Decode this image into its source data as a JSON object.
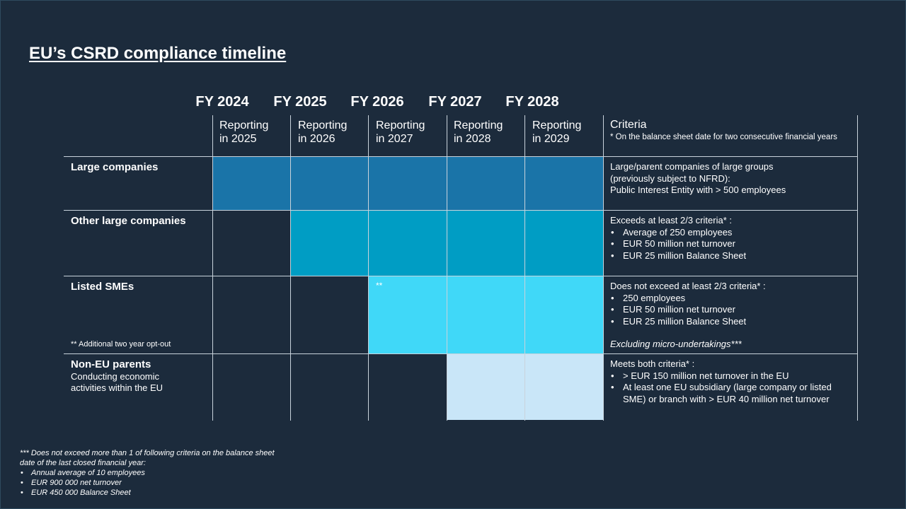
{
  "title": "EU’s CSRD compliance timeline",
  "fiscal_years": [
    "FY 2024",
    "FY 2025",
    "FY 2026",
    "FY 2027",
    "FY 2028"
  ],
  "reporting_years": [
    [
      "Reporting",
      "in 2025"
    ],
    [
      "Reporting",
      "in 2026"
    ],
    [
      "Reporting",
      "in 2027"
    ],
    [
      "Reporting",
      "in 2028"
    ],
    [
      "Reporting",
      "in 2029"
    ]
  ],
  "criteria_header": {
    "title": "Criteria",
    "note": "* On the balance sheet date for two consecutive financial years"
  },
  "colors": {
    "background": "#1c2b3c",
    "large": "#1a74a8",
    "other_large": "#009dc4",
    "listed_sme": "#40d8f8",
    "non_eu": "#c9e6f8"
  },
  "rows": [
    {
      "label": "Large companies",
      "criteria_lines": [
        "Large/parent companies of large groups",
        "(previously subject to NFRD):",
        "Public Interest Entity with > 500 employees"
      ]
    },
    {
      "label": "Other large companies",
      "criteria_intro": "Exceeds at least 2/3 criteria* :",
      "criteria_bullets": [
        "Average of 250 employees",
        "EUR 50 million net turnover",
        "EUR 25 million Balance Sheet"
      ]
    },
    {
      "label": "Listed SMEs",
      "note": "** Additional two year opt-out",
      "cell_marker": "**",
      "criteria_intro": "Does not exceed at least 2/3 criteria* :",
      "criteria_bullets": [
        "250 employees",
        "EUR 50 million net turnover",
        "EUR 25 million Balance Sheet"
      ],
      "criteria_extra": "Excluding micro-undertakings***"
    },
    {
      "label": "Non-EU parents",
      "sublabel_lines": [
        "Conducting economic",
        "activities within the EU"
      ],
      "criteria_intro": "Meets both criteria* :",
      "criteria_bullets": [
        "> EUR 150 million net turnover in the EU",
        "At least one EU subsidiary (large company or listed SME) or branch with > EUR 40 million net turnover"
      ]
    }
  ],
  "footnote": {
    "intro": "*** Does not exceed more than 1 of following criteria on the balance sheet date of the last closed financial year:",
    "bullets": [
      "Annual average of 10 employees",
      "EUR 900 000 net turnover",
      "EUR 450 000 Balance Sheet"
    ]
  }
}
